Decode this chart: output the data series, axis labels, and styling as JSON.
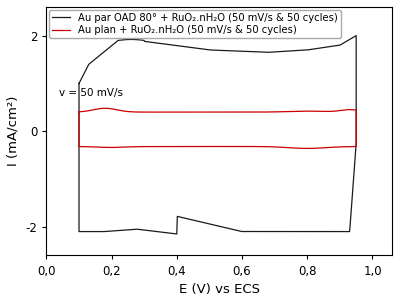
{
  "xlabel": "E (V) vs ECS",
  "ylabel": "I (mA/cm²)",
  "xlim": [
    0.0,
    1.06
  ],
  "ylim": [
    -2.6,
    2.6
  ],
  "xticks": [
    0.0,
    0.2,
    0.4,
    0.6,
    0.8,
    1.0
  ],
  "yticks": [
    -2,
    0,
    2
  ],
  "legend_lines": [
    "Au par OAD 80° + RuO₂.nH₂O (50 mV/s & 50 cycles)",
    "Au plan + RuO₂.nH₂O (50 mV/s & 50 cycles)"
  ],
  "annotation": "v = 50 mV/s",
  "black_color": "#1a1a1a",
  "red_color": "#cc0000",
  "bg_color": "#ffffff",
  "fontsize_legend": 7.2,
  "fontsize_labels": 9.5,
  "fontsize_ticks": 8.5,
  "fontsize_annotation": 7.5
}
